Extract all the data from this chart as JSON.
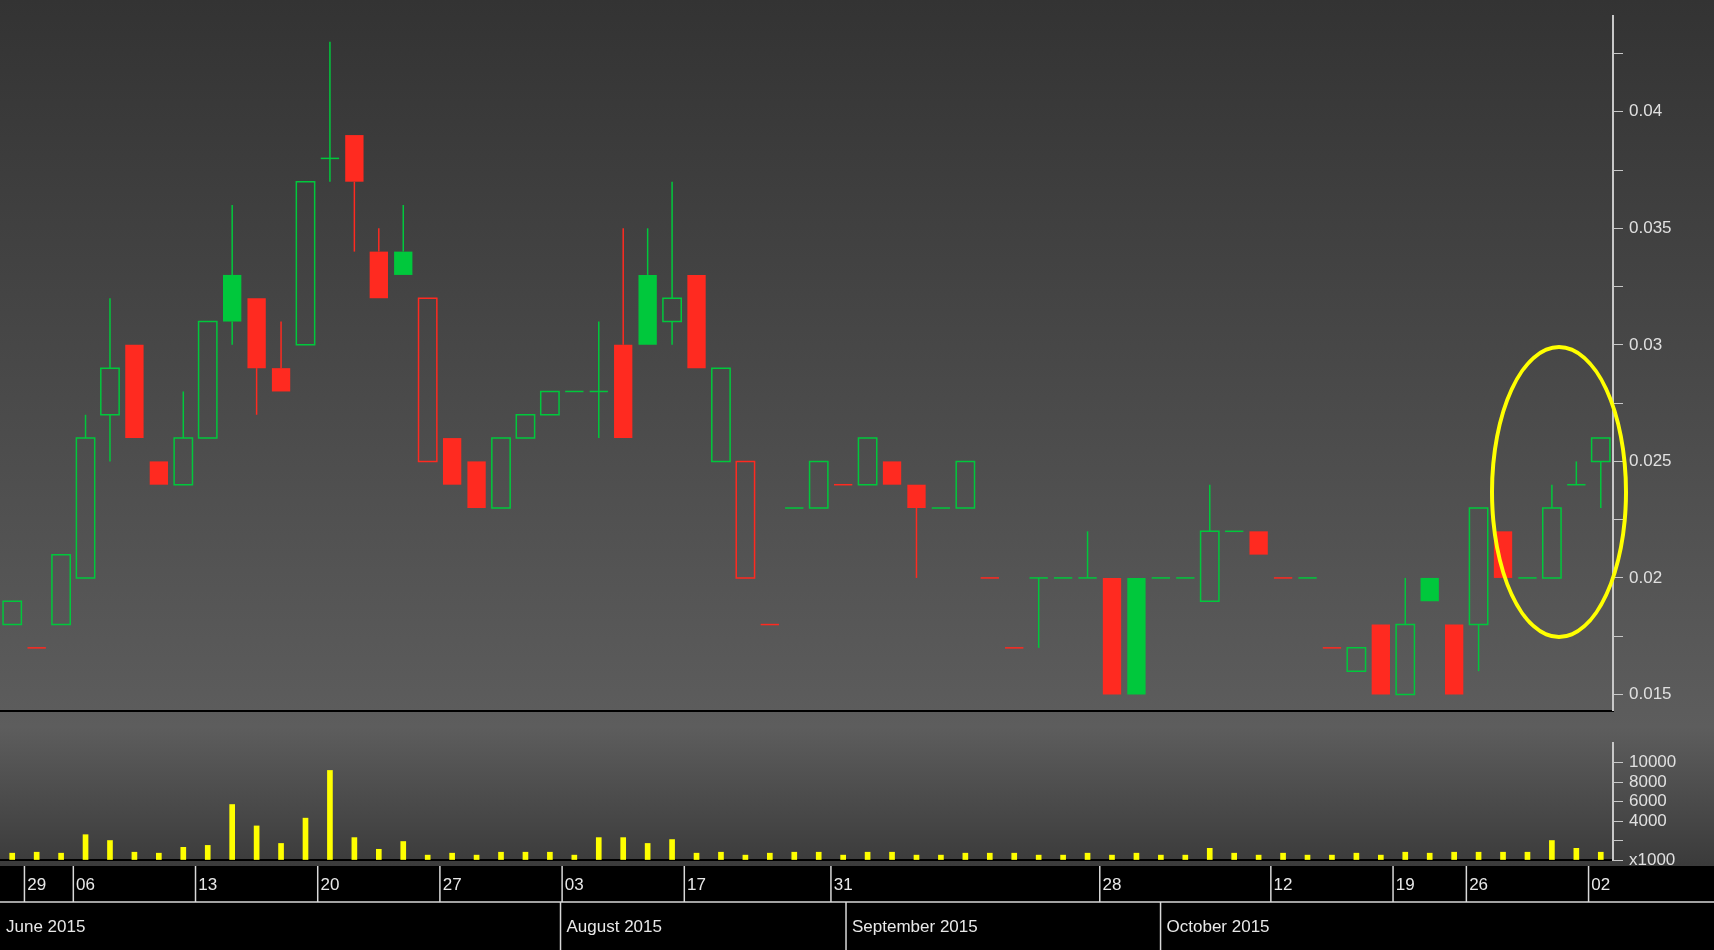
{
  "chart_data": [
    {
      "type": "candlestick",
      "tick_labels": "y",
      "categories": [
        null,
        "29",
        null,
        "06",
        null,
        null,
        null,
        null,
        "13",
        null,
        null,
        null,
        null,
        "20",
        null,
        null,
        null,
        null,
        "27",
        null,
        null,
        null,
        null,
        "03",
        null,
        null,
        null,
        null,
        "17",
        null,
        null,
        null,
        null,
        null,
        "31",
        null,
        null,
        null,
        null,
        null,
        null,
        null,
        null,
        null,
        null,
        "28",
        null,
        null,
        null,
        null,
        null,
        null,
        "12",
        null,
        null,
        null,
        null,
        "19",
        null,
        null,
        "26",
        null,
        null,
        null,
        null,
        "02"
      ],
      "ohlc": [
        [
          0.018,
          0.019,
          0.018,
          0.019
        ],
        [
          0.017,
          0.017,
          0.017,
          0.017
        ],
        [
          0.018,
          0.021,
          0.018,
          0.021
        ],
        [
          0.02,
          0.027,
          0.02,
          0.026
        ],
        [
          0.027,
          0.032,
          0.025,
          0.029
        ],
        [
          0.03,
          0.03,
          0.026,
          0.026
        ],
        [
          0.025,
          0.025,
          0.024,
          0.024
        ],
        [
          0.024,
          0.028,
          0.024,
          0.026
        ],
        [
          0.026,
          0.031,
          0.026,
          0.031
        ],
        [
          0.033,
          0.036,
          0.03,
          0.031
        ],
        [
          0.032,
          0.032,
          0.027,
          0.029
        ],
        [
          0.029,
          0.031,
          0.028,
          0.028
        ],
        [
          0.03,
          0.037,
          0.03,
          0.037
        ],
        [
          0.038,
          0.043,
          0.037,
          0.038
        ],
        [
          0.039,
          0.039,
          0.034,
          0.037
        ],
        [
          0.034,
          0.035,
          0.032,
          0.032
        ],
        [
          0.034,
          0.036,
          0.033,
          0.033
        ],
        [
          0.025,
          0.032,
          0.025,
          0.032
        ],
        [
          0.026,
          0.026,
          0.024,
          0.024
        ],
        [
          0.025,
          0.025,
          0.023,
          0.023
        ],
        [
          0.023,
          0.026,
          0.023,
          0.026
        ],
        [
          0.026,
          0.027,
          0.026,
          0.027
        ],
        [
          0.027,
          0.028,
          0.027,
          0.028
        ],
        [
          0.028,
          0.028,
          0.028,
          0.028
        ],
        [
          0.028,
          0.031,
          0.026,
          0.028
        ],
        [
          0.03,
          0.035,
          0.026,
          0.026
        ],
        [
          0.033,
          0.035,
          0.03,
          0.03
        ],
        [
          0.031,
          0.037,
          0.03,
          0.032
        ],
        [
          0.033,
          0.033,
          0.029,
          0.029
        ],
        [
          0.025,
          0.029,
          0.025,
          0.029
        ],
        [
          0.02,
          0.025,
          0.02,
          0.025
        ],
        [
          0.018,
          0.018,
          0.018,
          0.018
        ],
        [
          0.023,
          0.023,
          0.023,
          0.023
        ],
        [
          0.023,
          0.025,
          0.023,
          0.025
        ],
        [
          0.024,
          0.024,
          0.024,
          0.024
        ],
        [
          0.024,
          0.026,
          0.024,
          0.026
        ],
        [
          0.025,
          0.025,
          0.024,
          0.024
        ],
        [
          0.024,
          0.024,
          0.02,
          0.023
        ],
        [
          0.023,
          0.023,
          0.023,
          0.023
        ],
        [
          0.023,
          0.025,
          0.023,
          0.025
        ],
        [
          0.02,
          0.02,
          0.02,
          0.02
        ],
        [
          0.017,
          0.017,
          0.017,
          0.017
        ],
        [
          0.02,
          0.02,
          0.017,
          0.02
        ],
        [
          0.02,
          0.02,
          0.02,
          0.02
        ],
        [
          0.02,
          0.022,
          0.02,
          0.02
        ],
        [
          0.02,
          0.02,
          0.015,
          0.015
        ],
        [
          0.02,
          0.02,
          0.015,
          0.015
        ],
        [
          0.02,
          0.02,
          0.02,
          0.02
        ],
        [
          0.02,
          0.02,
          0.02,
          0.02
        ],
        [
          0.019,
          0.024,
          0.019,
          0.022
        ],
        [
          0.022,
          0.022,
          0.022,
          0.022
        ],
        [
          0.022,
          0.022,
          0.021,
          0.021
        ],
        [
          0.02,
          0.02,
          0.02,
          0.02
        ],
        [
          0.02,
          0.02,
          0.02,
          0.02
        ],
        [
          0.017,
          0.017,
          0.017,
          0.017
        ],
        [
          0.016,
          0.017,
          0.016,
          0.017
        ],
        [
          0.018,
          0.018,
          0.015,
          0.015
        ],
        [
          0.015,
          0.02,
          0.015,
          0.018
        ],
        [
          0.02,
          0.02,
          0.019,
          0.019
        ],
        [
          0.018,
          0.018,
          0.015,
          0.015
        ],
        [
          0.018,
          0.023,
          0.016,
          0.023
        ],
        [
          0.022,
          0.022,
          0.02,
          0.02
        ],
        [
          0.02,
          0.02,
          0.02,
          0.02
        ],
        [
          0.02,
          0.024,
          0.02,
          0.023
        ],
        [
          0.024,
          0.025,
          0.024,
          0.024
        ],
        [
          0.025,
          0.026,
          0.023,
          0.026
        ]
      ],
      "colors": [
        "#00c83c",
        "#ff2a20",
        "#00c83c",
        "#00c83c",
        "#00c83c",
        "#ff2a20",
        "#ff2a20",
        "#00c83c",
        "#00c83c",
        "#00c83c",
        "#ff2a20",
        "#ff2a20",
        "#00c83c",
        "#00c83c",
        "#ff2a20",
        "#ff2a20",
        "#00c83c",
        "#ff2a20",
        "#ff2a20",
        "#ff2a20",
        "#00c83c",
        "#00c83c",
        "#00c83c",
        "#00c83c",
        "#00c83c",
        "#ff2a20",
        "#00c83c",
        "#00c83c",
        "#ff2a20",
        "#00c83c",
        "#ff2a20",
        "#ff2a20",
        "#00c83c",
        "#00c83c",
        "#ff2a20",
        "#00c83c",
        "#ff2a20",
        "#ff2a20",
        "#00c83c",
        "#00c83c",
        "#ff2a20",
        "#ff2a20",
        "#00c83c",
        "#00c83c",
        "#00c83c",
        "#ff2a20",
        "#00c83c",
        "#00c83c",
        "#00c83c",
        "#00c83c",
        "#00c83c",
        "#ff2a20",
        "#ff2a20",
        "#00c83c",
        "#ff2a20",
        "#00c83c",
        "#ff2a20",
        "#00c83c",
        "#00c83c",
        "#ff2a20",
        "#00c83c",
        "#ff2a20",
        "#00c83c",
        "#00c83c",
        "#00c83c",
        "#00c83c"
      ],
      "ylim": [
        0.0143,
        0.0441
      ],
      "yticks": [
        0.015,
        {
          "value": 0.0175,
          "label": null
        },
        0.02,
        {
          "value": 0.0225,
          "label": null
        },
        0.025,
        {
          "value": 0.0275,
          "label": null
        },
        0.03,
        {
          "value": 0.0325,
          "label": null
        },
        0.035,
        {
          "value": 0.0375,
          "label": null
        },
        0.04,
        {
          "value": 0.0425,
          "label": null
        }
      ]
    },
    {
      "type": "bar",
      "categories": [
        null,
        "29",
        null,
        "06",
        null,
        null,
        null,
        null,
        "13",
        null,
        null,
        null,
        null,
        "20",
        null,
        null,
        null,
        null,
        "27",
        null,
        null,
        null,
        null,
        "03",
        null,
        null,
        null,
        null,
        "17",
        null,
        null,
        null,
        null,
        null,
        "31",
        null,
        null,
        null,
        null,
        null,
        null,
        null,
        null,
        null,
        null,
        "28",
        null,
        null,
        null,
        null,
        null,
        null,
        "12",
        null,
        null,
        null,
        null,
        "19",
        null,
        null,
        "26",
        null,
        null,
        null,
        null,
        "02"
      ],
      "values": [
        700,
        800,
        700,
        2600,
        2000,
        800,
        700,
        1300,
        1500,
        5700,
        3500,
        1700,
        4300,
        9200,
        2300,
        1100,
        1900,
        500,
        700,
        500,
        800,
        800,
        800,
        500,
        2300,
        2300,
        1700,
        2100,
        700,
        800,
        500,
        700,
        800,
        800,
        500,
        800,
        800,
        500,
        500,
        700,
        700,
        700,
        500,
        500,
        700,
        500,
        700,
        500,
        500,
        1200,
        700,
        500,
        700,
        500,
        500,
        700,
        500,
        800,
        700,
        800,
        800,
        800,
        800,
        2000,
        1200,
        800
      ],
      "color": "#ffff00",
      "ylim": [
        0,
        12000
      ],
      "yticks": [
        {
          "value": 0,
          "label": "x1000"
        },
        {
          "value": 2000,
          "label": null
        },
        4000,
        6000,
        8000,
        10000
      ],
      "annotations": [
        "June 2015",
        "August 2015",
        "September 2015",
        "October 2015"
      ]
    }
  ]
}
